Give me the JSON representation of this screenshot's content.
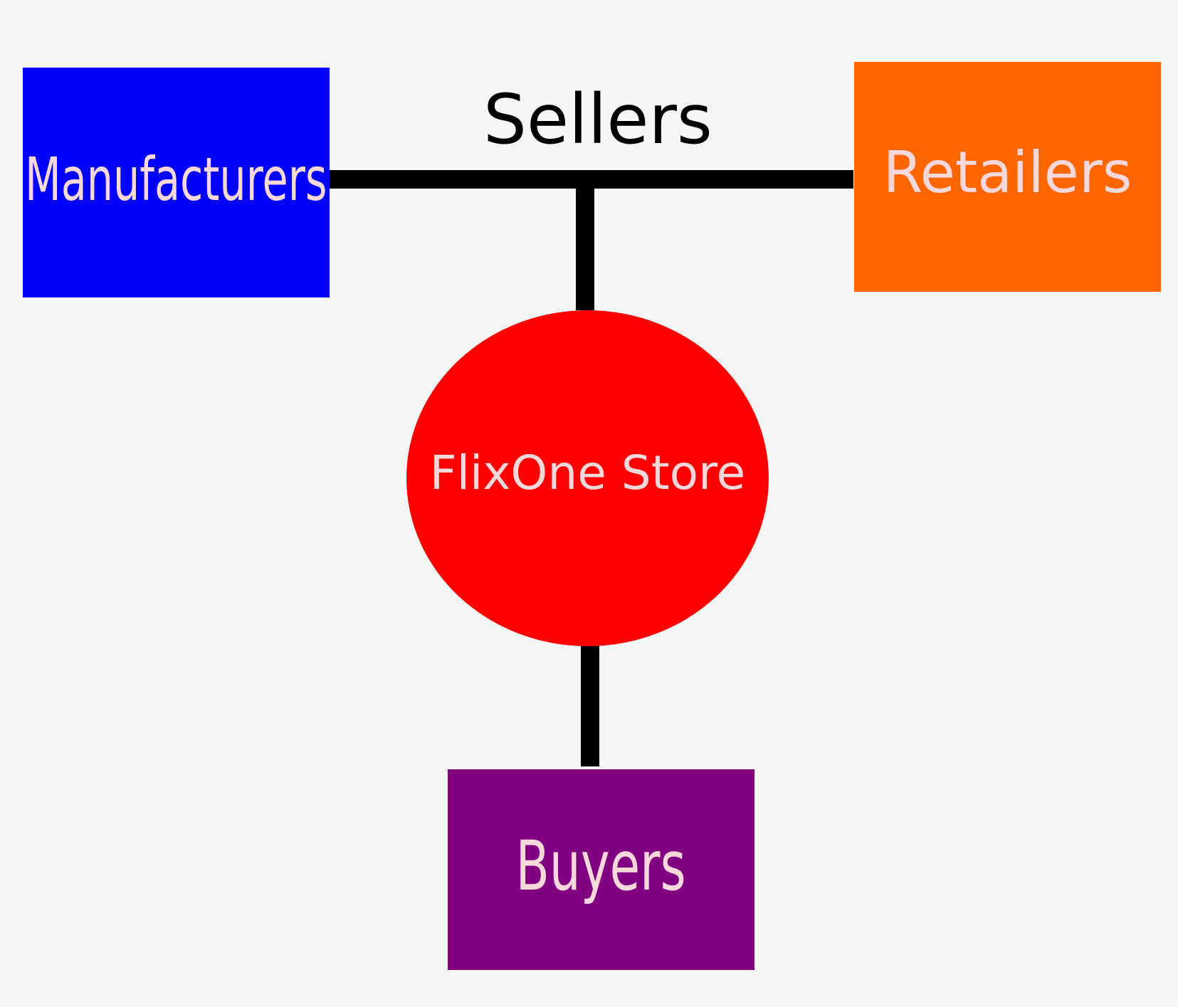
{
  "diagram": {
    "title": "Sellers",
    "nodes": [
      {
        "id": "manufacturers",
        "label": "Manufacturers",
        "shape": "rectangle",
        "color": "#0000ff"
      },
      {
        "id": "retailers",
        "label": "Retailers",
        "shape": "rectangle",
        "color": "#ff6600"
      },
      {
        "id": "store",
        "label": "FlixOne Store",
        "shape": "ellipse",
        "color": "#ff0000"
      },
      {
        "id": "buyers",
        "label": "Buyers",
        "shape": "rectangle",
        "color": "#800080"
      }
    ],
    "edges": [
      {
        "from": "manufacturers",
        "to": "retailers"
      },
      {
        "from": "sellers-line",
        "to": "store"
      },
      {
        "from": "store",
        "to": "buyers"
      }
    ],
    "label_color": "#f9d8dc",
    "line_color": "#000000",
    "background": "#f6f6f6"
  }
}
